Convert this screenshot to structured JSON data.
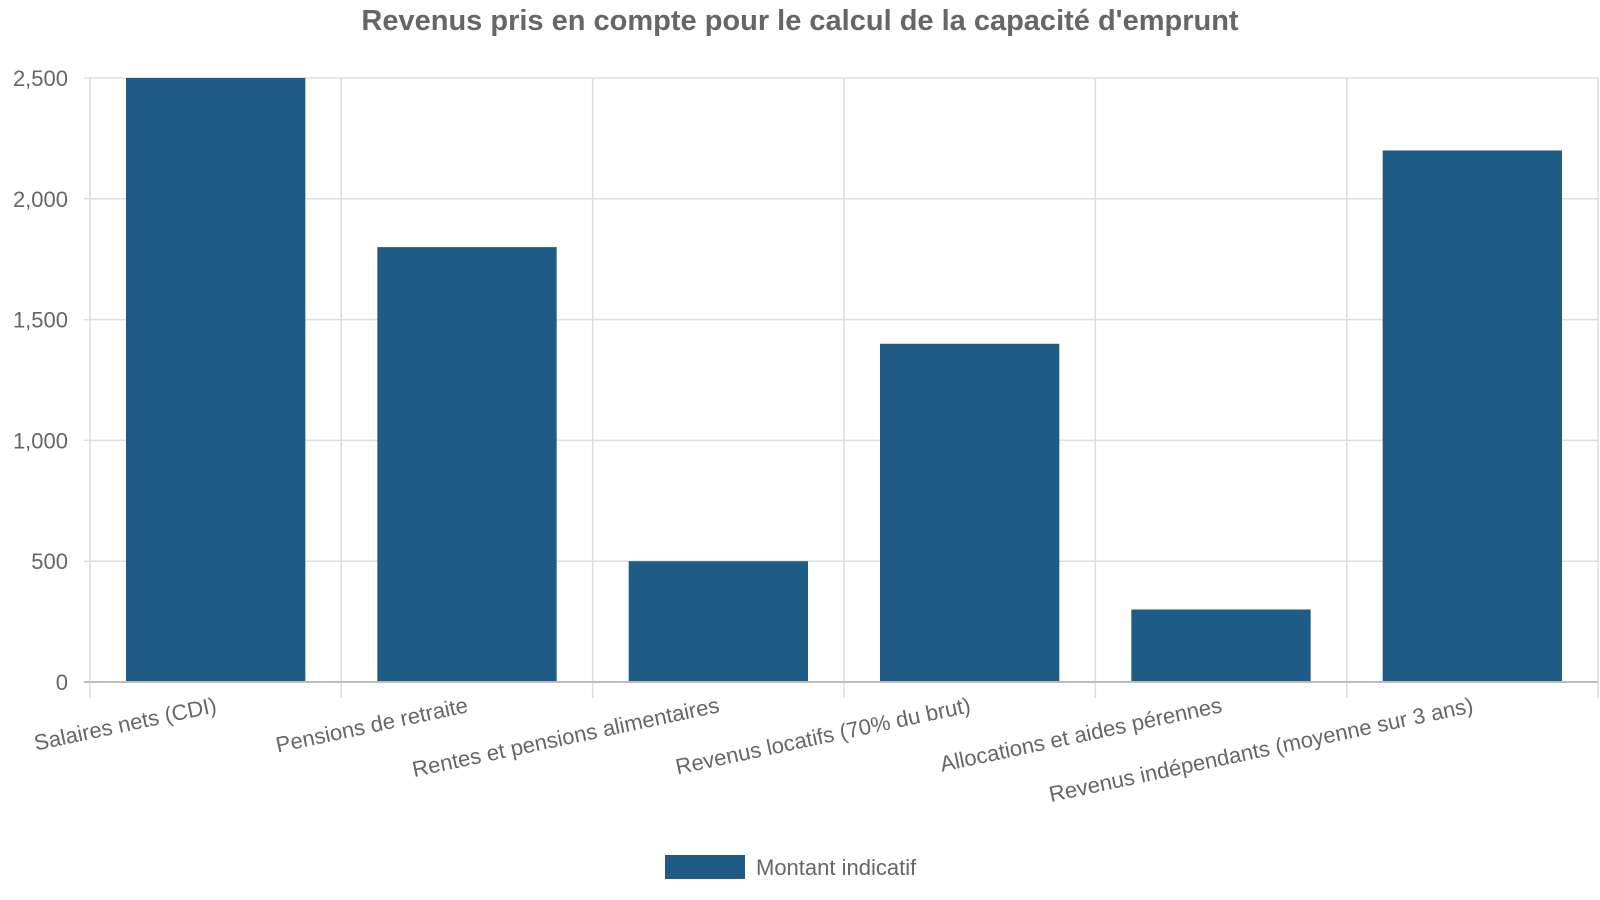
{
  "colors": {
    "bar": "#1f5c85",
    "grid": "#dddddd",
    "axis": "#bbbbbb",
    "text": "#666666"
  },
  "chart_data": {
    "type": "bar",
    "title": "Revenus pris en compte pour le calcul de la capacité d'emprunt",
    "xlabel": "",
    "ylabel": "",
    "categories": [
      "Salaires nets (CDI)",
      "Pensions de retraite",
      "Rentes et pensions alimentaires",
      "Revenus locatifs (70% du brut)",
      "Allocations et aides pérennes",
      "Revenus indépendants (moyenne sur 3 ans)"
    ],
    "series": [
      {
        "name": "Montant indicatif",
        "values": [
          2500,
          1800,
          500,
          1400,
          300,
          2200
        ]
      }
    ],
    "ylim": [
      0,
      2500
    ],
    "yticks": [
      0,
      500,
      1000,
      1500,
      2000,
      2500
    ],
    "ytick_labels": [
      "0",
      "500",
      "1,000",
      "1,500",
      "2,000",
      "2,500"
    ],
    "grid": true,
    "legend_position": "bottom-center"
  }
}
